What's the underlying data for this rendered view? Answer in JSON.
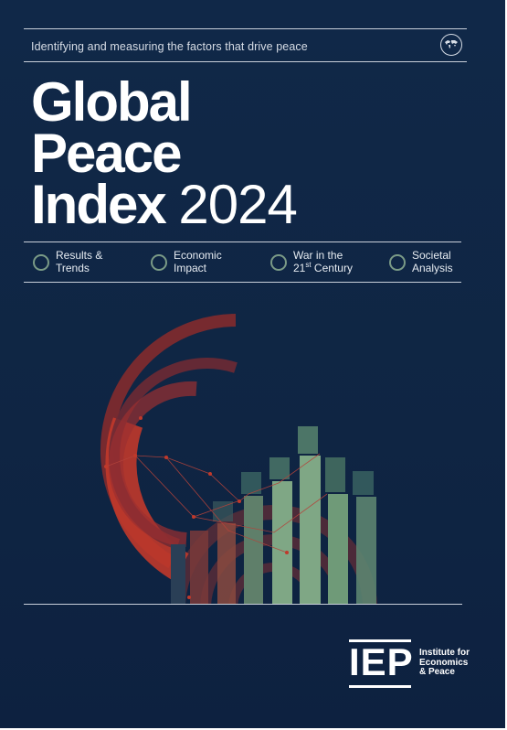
{
  "cover": {
    "tagline": "Identifying and measuring the factors that drive peace",
    "title_lines": [
      "Global",
      "Peace",
      "Index"
    ],
    "year": "2024"
  },
  "sections": [
    {
      "line1": "Results &",
      "line2": "Trends"
    },
    {
      "line1": "Economic",
      "line2": "Impact"
    },
    {
      "line1": "War in the",
      "line2_number": "21",
      "line2_suffix": "st",
      "line2_rest": " Century"
    },
    {
      "line1": "Societal",
      "line2": "Analysis"
    }
  ],
  "publisher": {
    "acronym": "IEP",
    "name_lines": [
      "Institute for",
      "Economics",
      "& Peace"
    ]
  },
  "colors": {
    "background": "#102848",
    "accent_red": "#c0392b",
    "accent_green": "#6f9a78",
    "ring_green": "#7a9a86"
  },
  "icons": {
    "globe": "globe-icon",
    "section_marker": "ring-icon"
  }
}
